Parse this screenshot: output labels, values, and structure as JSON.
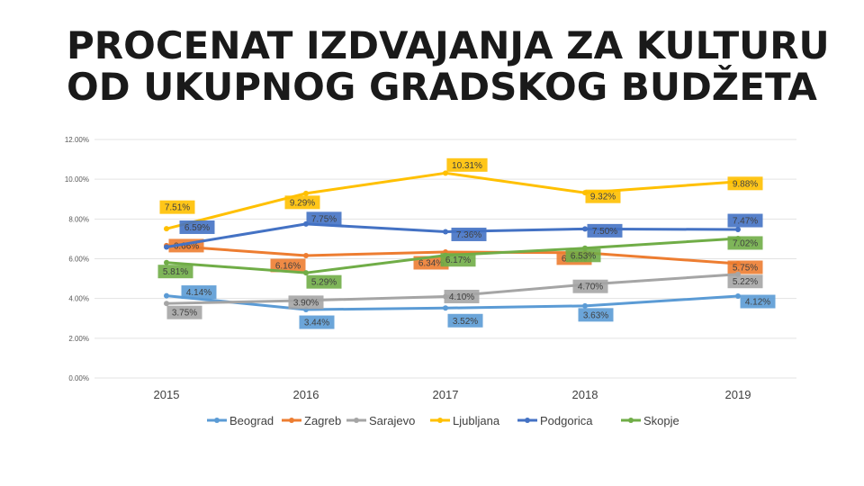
{
  "title_lines": [
    "PROCENAT IZDVAJANJA ZA KULTURU",
    "OD UKUPNOG GRADSKOG BUDŽETA"
  ],
  "chart_data": {
    "type": "line",
    "title": "",
    "xlabel": "",
    "ylabel": "",
    "categories": [
      "2015",
      "2016",
      "2017",
      "2018",
      "2019"
    ],
    "ylim": [
      0,
      12
    ],
    "yticks": [
      "0.00%",
      "2.00%",
      "4.00%",
      "6.00%",
      "8.00%",
      "10.00%",
      "12.00%"
    ],
    "grid": true,
    "legend": "bottom",
    "series": [
      {
        "name": "Beograd",
        "color": "#5b9bd5",
        "values": [
          4.14,
          3.44,
          3.52,
          3.63,
          4.12
        ],
        "labels": [
          "4.14%",
          "3.44%",
          "3.52%",
          "3.63%",
          "4.12%"
        ]
      },
      {
        "name": "Zagreb",
        "color": "#ed7d31",
        "values": [
          6.66,
          6.16,
          6.34,
          6.3,
          5.75
        ],
        "labels": [
          "6.66%",
          "6.16%",
          "6.34%",
          "6.30%",
          "5.75%"
        ]
      },
      {
        "name": "Sarajevo",
        "color": "#a5a5a5",
        "values": [
          3.75,
          3.9,
          4.1,
          4.7,
          5.22
        ],
        "labels": [
          "3.75%",
          "3.90%",
          "4.10%",
          "4.70%",
          "5.22%"
        ]
      },
      {
        "name": "Ljubljana",
        "color": "#ffc000",
        "values": [
          7.51,
          9.29,
          10.31,
          9.32,
          9.88
        ],
        "labels": [
          "7.51%",
          "9.29%",
          "10.31%",
          "9.32%",
          "9.88%"
        ]
      },
      {
        "name": "Podgorica",
        "color": "#4472c4",
        "values": [
          6.59,
          7.75,
          7.36,
          7.5,
          7.47
        ],
        "labels": [
          "6.59%",
          "7.75%",
          "7.36%",
          "7.50%",
          "7.47%"
        ]
      },
      {
        "name": "Skopje",
        "color": "#70ad47",
        "values": [
          5.81,
          5.29,
          6.17,
          6.53,
          7.02
        ],
        "labels": [
          "5.81%",
          "5.29%",
          "6.17%",
          "6.53%",
          "7.02%"
        ]
      }
    ]
  }
}
